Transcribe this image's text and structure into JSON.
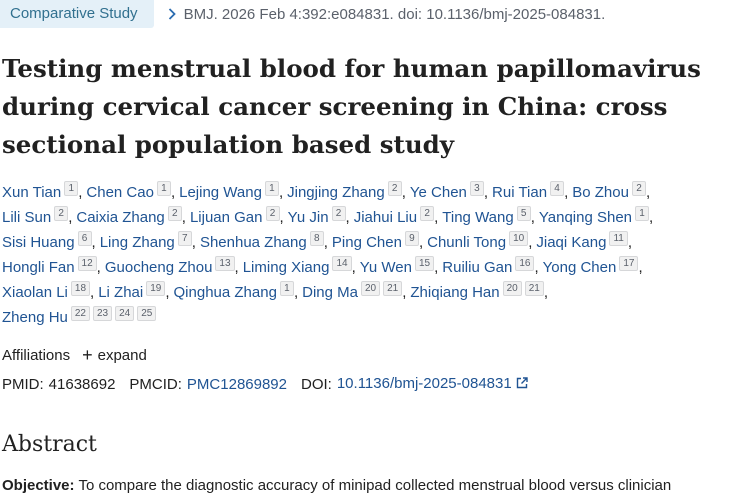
{
  "header": {
    "badge": "Comparative Study",
    "citation": "BMJ. 2026 Feb 4:392:e084831. doi: 10.1136/bmj-2025-084831."
  },
  "title": "Testing menstrual blood for human papillomavirus during cervical cancer screening in China: cross sectional population based study",
  "authors": [
    {
      "name": "Xun Tian",
      "aff": [
        "1"
      ]
    },
    {
      "name": "Chen Cao",
      "aff": [
        "1"
      ]
    },
    {
      "name": "Lejing Wang",
      "aff": [
        "1"
      ]
    },
    {
      "name": "Jingjing Zhang",
      "aff": [
        "2"
      ]
    },
    {
      "name": "Ye Chen",
      "aff": [
        "3"
      ]
    },
    {
      "name": "Rui Tian",
      "aff": [
        "4"
      ]
    },
    {
      "name": "Bo Zhou",
      "aff": [
        "2"
      ]
    },
    {
      "name": "Lili Sun",
      "aff": [
        "2"
      ]
    },
    {
      "name": "Caixia Zhang",
      "aff": [
        "2"
      ]
    },
    {
      "name": "Lijuan Gan",
      "aff": [
        "2"
      ]
    },
    {
      "name": "Yu Jin",
      "aff": [
        "2"
      ]
    },
    {
      "name": "Jiahui Liu",
      "aff": [
        "2"
      ]
    },
    {
      "name": "Ting Wang",
      "aff": [
        "5"
      ]
    },
    {
      "name": "Yanqing Shen",
      "aff": [
        "1"
      ]
    },
    {
      "name": "Sisi Huang",
      "aff": [
        "6"
      ]
    },
    {
      "name": "Ling Zhang",
      "aff": [
        "7"
      ]
    },
    {
      "name": "Shenhua Zhang",
      "aff": [
        "8"
      ]
    },
    {
      "name": "Ping Chen",
      "aff": [
        "9"
      ]
    },
    {
      "name": "Chunli Tong",
      "aff": [
        "10"
      ]
    },
    {
      "name": "Jiaqi Kang",
      "aff": [
        "11"
      ]
    },
    {
      "name": "Hongli Fan",
      "aff": [
        "12"
      ]
    },
    {
      "name": "Guocheng Zhou",
      "aff": [
        "13"
      ]
    },
    {
      "name": "Liming Xiang",
      "aff": [
        "14"
      ]
    },
    {
      "name": "Yu Wen",
      "aff": [
        "15"
      ]
    },
    {
      "name": "Ruiliu Gan",
      "aff": [
        "16"
      ]
    },
    {
      "name": "Yong Chen",
      "aff": [
        "17"
      ]
    },
    {
      "name": "Xiaolan Li",
      "aff": [
        "18"
      ]
    },
    {
      "name": "Li Zhai",
      "aff": [
        "19"
      ]
    },
    {
      "name": "Qinghua Zhang",
      "aff": [
        "1"
      ]
    },
    {
      "name": "Ding Ma",
      "aff": [
        "20",
        "21"
      ]
    },
    {
      "name": "Zhiqiang Han",
      "aff": [
        "20",
        "21"
      ]
    },
    {
      "name": "Zheng Hu",
      "aff": [
        "22",
        "23",
        "24",
        "25"
      ]
    }
  ],
  "affiliations": {
    "label": "Affiliations",
    "expand": "expand"
  },
  "ids": {
    "pmid_label": "PMID:",
    "pmid": "41638692",
    "pmcid_label": "PMCID:",
    "pmcid": "PMC12869892",
    "doi_label": "DOI:",
    "doi": "10.1136/bmj-2025-084831"
  },
  "abstract": {
    "heading": "Abstract",
    "objective_label": "Objective:",
    "objective_text": "To compare the diagnostic accuracy of minipad collected menstrual blood versus clinician"
  },
  "colors": {
    "link": "#205493",
    "badge_bg": "#e4f0f8",
    "badge_text": "#31708f"
  }
}
